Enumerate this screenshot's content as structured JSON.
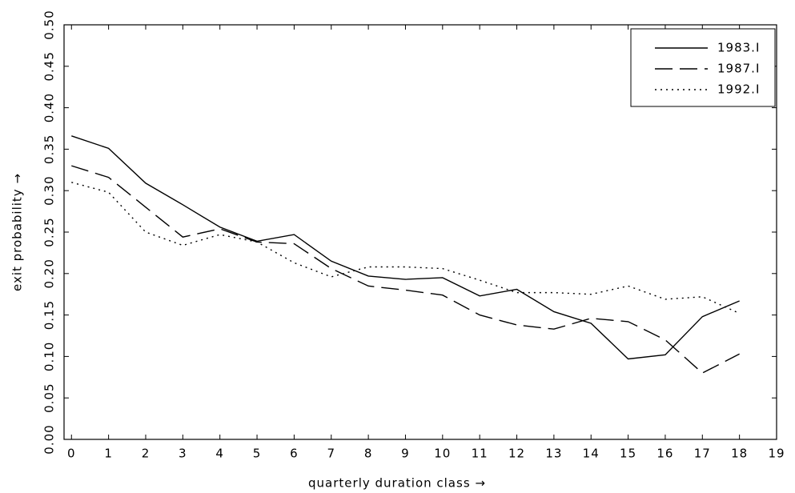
{
  "chart_data": {
    "type": "line",
    "x_label": "quarterly duration class →",
    "y_label": "exit probability →",
    "x": [
      0,
      1,
      2,
      3,
      4,
      5,
      6,
      7,
      8,
      9,
      10,
      11,
      12,
      13,
      14,
      15,
      16,
      17,
      18
    ],
    "series": [
      {
        "name": "1983.I",
        "color": "#000000",
        "style": "solid",
        "values": [
          0.366,
          0.351,
          0.309,
          0.283,
          0.256,
          0.239,
          0.247,
          0.215,
          0.197,
          0.193,
          0.195,
          0.173,
          0.181,
          0.154,
          0.14,
          0.097,
          0.102,
          0.148,
          0.167
        ]
      },
      {
        "name": "1987.I",
        "color": "#000000",
        "style": "dashed",
        "values": [
          0.33,
          0.316,
          0.28,
          0.244,
          0.254,
          0.238,
          0.236,
          0.206,
          0.185,
          0.18,
          0.174,
          0.15,
          0.138,
          0.133,
          0.146,
          0.142,
          0.12,
          0.08,
          0.103
        ]
      },
      {
        "name": "1992.I",
        "color": "#000000",
        "style": "dotted",
        "values": [
          0.31,
          0.298,
          0.25,
          0.234,
          0.247,
          0.238,
          0.213,
          0.196,
          0.208,
          0.208,
          0.206,
          0.192,
          0.177,
          0.177,
          0.175,
          0.185,
          0.169,
          0.172,
          0.152
        ]
      }
    ],
    "xlim": [
      -0.2,
      19
    ],
    "xticks": [
      0,
      1,
      2,
      3,
      4,
      5,
      6,
      7,
      8,
      9,
      10,
      11,
      12,
      13,
      14,
      15,
      16,
      17,
      18,
      19
    ],
    "ylim": [
      0,
      0.5
    ],
    "yticks": [
      {
        "value": 0,
        "label": "0.00"
      },
      {
        "value": 0.05,
        "label": "0.05"
      },
      {
        "value": 0.1,
        "label": "0.10"
      },
      {
        "value": 0.15,
        "label": "0.15"
      },
      {
        "value": 0.2,
        "label": "0.20"
      },
      {
        "value": 0.25,
        "label": "0.25"
      },
      {
        "value": 0.3,
        "label": "0.30"
      },
      {
        "value": 0.35,
        "label": "0.35"
      },
      {
        "value": 0.4,
        "label": "0.40"
      },
      {
        "value": 0.45,
        "label": "0.45"
      },
      {
        "value": 0.5,
        "label": "0.50"
      }
    ],
    "grid": false,
    "legend": "top-right"
  }
}
